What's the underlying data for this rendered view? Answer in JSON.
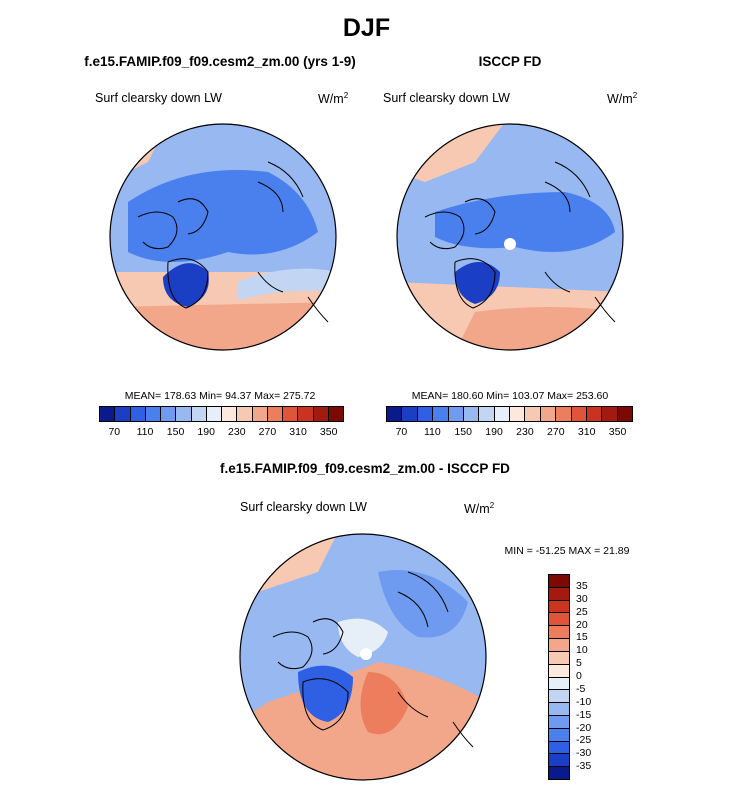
{
  "main_title": "DJF",
  "units_base": "W/m",
  "units_exp": "2",
  "chart_data": [
    {
      "type": "heatmap",
      "projection": "north-polar-stereographic",
      "title": "f.e15.FAMIP.f09_f09.cesm2_zm.00 (yrs 1-9)",
      "variable": "Surf clearsky down LW",
      "units": "W/m2",
      "stats_text": "MEAN= 178.63  Min=  94.37  Max= 275.72",
      "mean": 178.63,
      "min": 94.37,
      "max": 275.72,
      "colorbar_ticks": [
        "70",
        "110",
        "150",
        "190",
        "230",
        "270",
        "310",
        "350"
      ]
    },
    {
      "type": "heatmap",
      "projection": "north-polar-stereographic",
      "title": "ISCCP FD",
      "variable": "Surf clearsky down LW",
      "units": "W/m2",
      "stats_text": "MEAN= 180.60  Min= 103.07  Max= 253.60",
      "mean": 180.6,
      "min": 103.07,
      "max": 253.6,
      "colorbar_ticks": [
        "70",
        "110",
        "150",
        "190",
        "230",
        "270",
        "310",
        "350"
      ]
    },
    {
      "type": "heatmap",
      "projection": "north-polar-stereographic",
      "title": "f.e15.FAMIP.f09_f09.cesm2_zm.00 - ISCCP FD",
      "variable": "Surf clearsky down LW",
      "units": "W/m2",
      "stats_text": "MIN = -51.25 MAX =  21.89",
      "min": -51.25,
      "max": 21.89,
      "colorbar_ticks": [
        "35",
        "30",
        "25",
        "20",
        "15",
        "10",
        "5",
        "0",
        "-5",
        "-10",
        "-15",
        "-20",
        "-25",
        "-30",
        "-35"
      ]
    }
  ],
  "colors": {
    "abs_scale": [
      "#0a1a8c",
      "#1a3fc4",
      "#2f5fe3",
      "#4a80ee",
      "#6e9bf0",
      "#98b8f2",
      "#c2d6f4",
      "#e6eef8",
      "#fde9dc",
      "#f7c8b2",
      "#f2a78a",
      "#ec7e5e",
      "#e0553a",
      "#c93420",
      "#a51a0e",
      "#7c0a04"
    ],
    "diff_scale": [
      "#7c0a04",
      "#a51a0e",
      "#c93420",
      "#e0553a",
      "#ec7e5e",
      "#f2a78a",
      "#f7c8b2",
      "#fde9dc",
      "#e6eef8",
      "#c2d6f4",
      "#98b8f2",
      "#6e9bf0",
      "#4a80ee",
      "#2f5fe3",
      "#1a3fc4",
      "#0a1a8c"
    ]
  }
}
